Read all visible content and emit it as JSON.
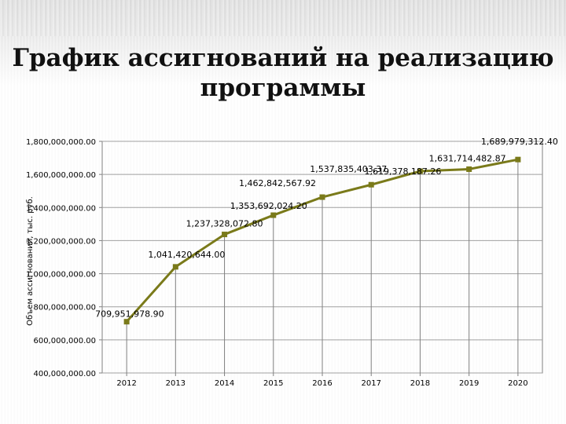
{
  "slide": {
    "title": "График ассигнований на реализацию\nпрограммы"
  },
  "colors": {
    "line": "#7a7a1a",
    "marker": "#7a7a1a",
    "grid": "#a0a0a0",
    "axis": "#808080"
  },
  "chart_data": {
    "type": "line",
    "title": "",
    "xlabel": "",
    "ylabel": "Объем ассигнований, тыс. руб.",
    "ylim": [
      400000000,
      1800000000
    ],
    "y_ticks": [
      400000000,
      600000000,
      800000000,
      1000000000,
      1200000000,
      1400000000,
      1600000000,
      1800000000
    ],
    "y_tick_labels": [
      "400,000,000.00",
      "600,000,000.00",
      "800,000,000.00",
      "1,000,000,000.00",
      "1,200,000,000.00",
      "1,400,000,000.00",
      "1,600,000,000.00",
      "1,800,000,000.00"
    ],
    "categories": [
      "2012",
      "2013",
      "2014",
      "2015",
      "2016",
      "2017",
      "2018",
      "2019",
      "2020"
    ],
    "series": [
      {
        "values": [
          709951978.9,
          1041420644.0,
          1237328072.8,
          1353692024.2,
          1462842567.92,
          1537835403.37,
          1619378187.26,
          1631714482.87,
          1689979312.4
        ],
        "data_labels": [
          "709,951,978.90",
          "1,041,420,644.00",
          "1,237,328,072.80",
          "1,353,692,024.20",
          "1,462,842,567.92",
          "1,537,835,403.37",
          "1,619,378,187.26",
          "1,631,714,482.87",
          "1,689,979,312.40"
        ]
      }
    ],
    "grid": true,
    "legend": "none"
  }
}
